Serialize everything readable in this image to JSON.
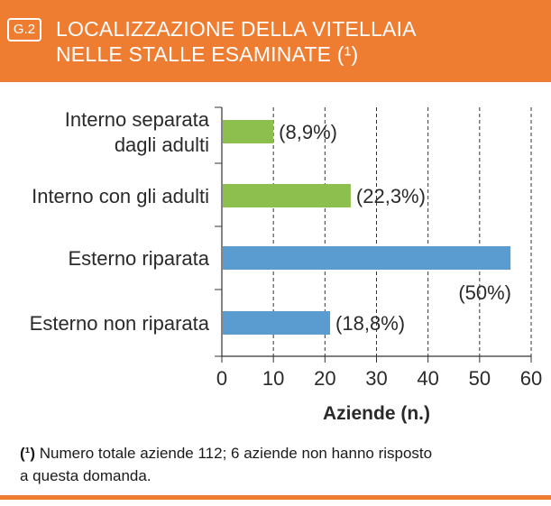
{
  "figure": {
    "badge": "G.2",
    "title_line1": "LOCALIZZAZIONE DELLA VITELLAIA",
    "title_line2": "NELLE STALLE ESAMINATE (¹)"
  },
  "footnote": {
    "marker": "(¹)",
    "line1": "Numero totale aziende 112; 6 aziende non hanno risposto",
    "line2": "a questa domanda."
  },
  "colors": {
    "header": "#ee7d31",
    "green": "#8dbf4f",
    "blue": "#5a9bd0"
  },
  "chart_data": {
    "type": "bar",
    "orientation": "horizontal",
    "categories": [
      [
        "Interno separata",
        "dagli adulti"
      ],
      [
        "Interno con gli adulti"
      ],
      [
        "Esterno riparata"
      ],
      [
        "Esterno non riparata"
      ]
    ],
    "values": [
      10,
      25,
      56,
      21
    ],
    "data_labels": [
      "(8,9%)",
      "(22,3%)",
      "(50%)",
      "(18,8%)"
    ],
    "bar_colors": [
      "#8dbf4f",
      "#8dbf4f",
      "#5a9bd0",
      "#5a9bd0"
    ],
    "xlabel": "Aziende (n.)",
    "xlim": [
      0,
      60
    ],
    "xticks": [
      0,
      10,
      20,
      30,
      40,
      50,
      60
    ],
    "grid": "vertical dashed"
  }
}
